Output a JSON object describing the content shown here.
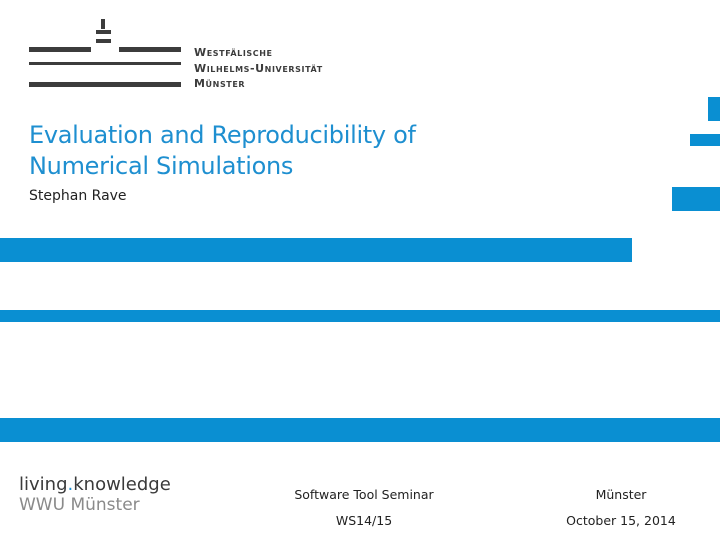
{
  "university": {
    "line1": "Westfälische",
    "line2": "Wilhelms-Universität",
    "line3": "Münster"
  },
  "title": {
    "line1": "Evaluation and Reproducibility of",
    "line2": "Numerical Simulations"
  },
  "author": "Stephan Rave",
  "footer": {
    "slogan_left": "living",
    "slogan_dot": ".",
    "slogan_right": "knowledge",
    "wwu": "WWU Münster",
    "event": "Software  Tool  Seminar",
    "semester": "WS14/15",
    "location": "Münster",
    "date": "October 15, 2014"
  },
  "colors": {
    "accent": "#0a8fd2",
    "title": "#1e8fd0",
    "text": "#222222"
  }
}
